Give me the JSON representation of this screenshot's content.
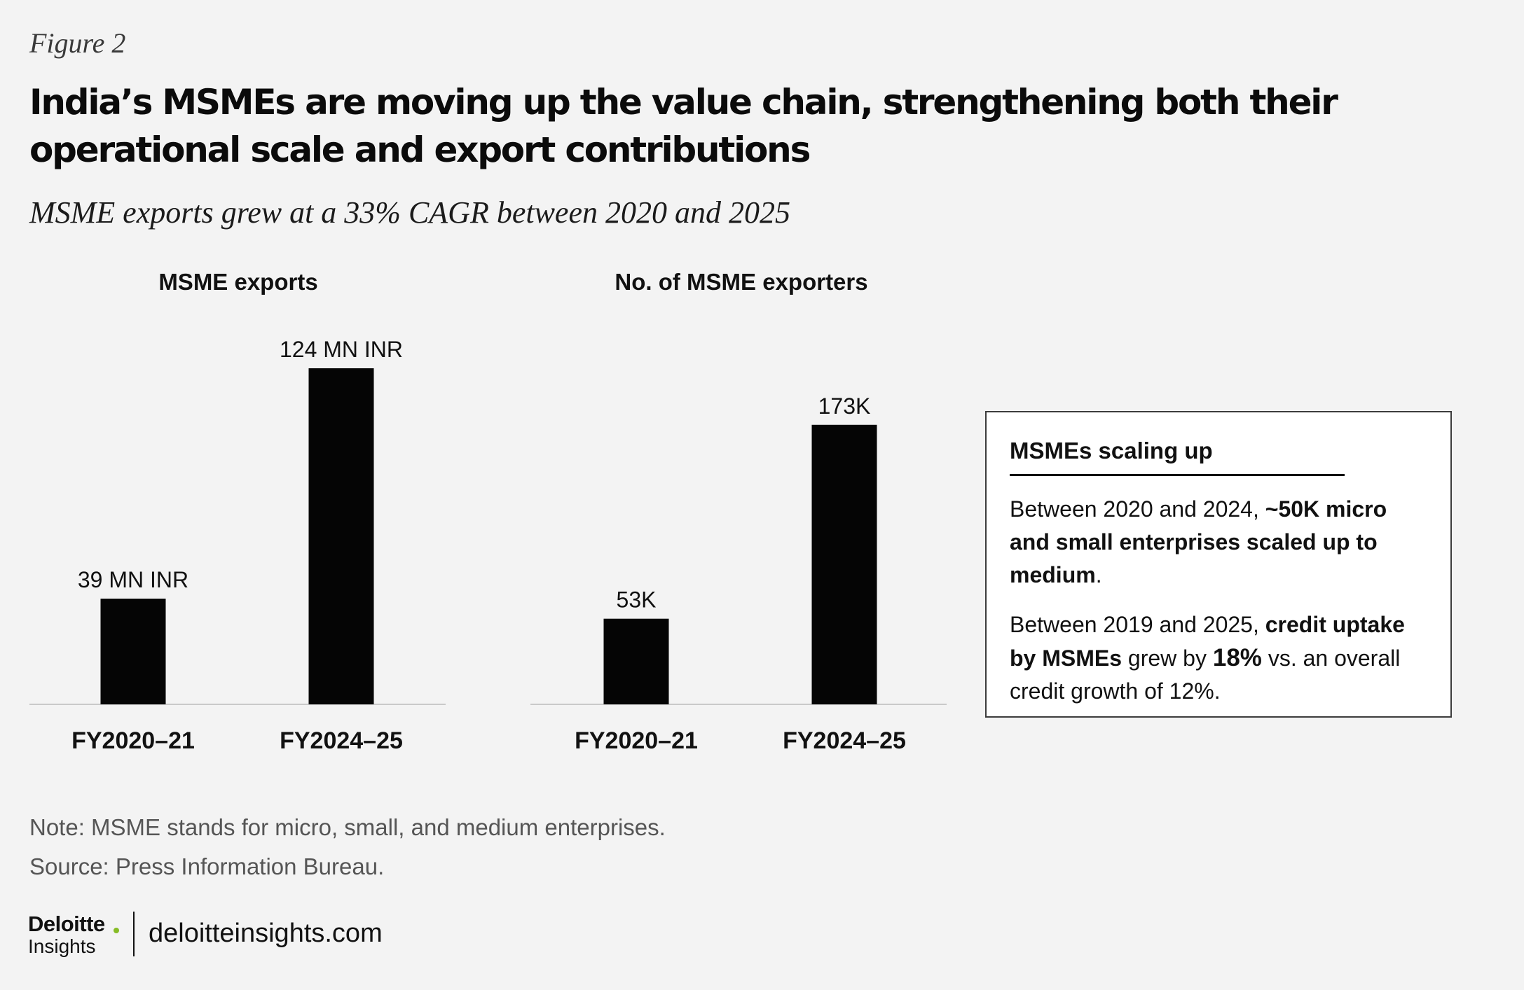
{
  "figure_label": "Figure 2",
  "title": "India’s MSMEs are moving up the value chain, strengthening both their operational scale and export contributions",
  "subtitle": "MSME exports grew at a 33% CAGR between 2020 and 2025",
  "chart_data": [
    {
      "type": "bar",
      "title": "MSME exports",
      "categories": [
        "FY2020–21",
        "FY2024–25"
      ],
      "values": [
        39,
        124
      ],
      "unit": "MN INR",
      "data_labels": [
        "39 MN INR",
        "124  MN INR"
      ],
      "ylim": [
        0,
        124
      ],
      "xlabel": "",
      "ylabel": "",
      "grid": false
    },
    {
      "type": "bar",
      "title": "No. of MSME exporters",
      "categories": [
        "FY2020–21",
        "FY2024–25"
      ],
      "values": [
        53,
        173
      ],
      "unit": "K",
      "data_labels": [
        "53K",
        "173K"
      ],
      "ylim": [
        0,
        208
      ],
      "xlabel": "",
      "ylabel": "",
      "grid": false
    }
  ],
  "callout": {
    "title": "MSMEs scaling up",
    "p1_prefix": "Between 2020 and 2024, ",
    "p1_bold": "~50K micro and small enterprises scaled up to medium",
    "p1_suffix": ".",
    "p2_prefix": "Between 2019 and 2025, ",
    "p2_bold1": "credit uptake by MSMEs",
    "p2_mid": " grew by ",
    "p2_bold2": "18%",
    "p2_suffix": " vs. an overall credit growth of 12%."
  },
  "note": "Note: MSME stands for micro, small, and medium enterprises.",
  "source": "Source: Press Information Bureau.",
  "logo": {
    "name": "Deloitte",
    "sub": "Insights"
  },
  "website": "deloitteinsights.com",
  "colors": {
    "bar": "#050505",
    "background": "#f3f3f3",
    "logo_dot": "#86bc25"
  }
}
